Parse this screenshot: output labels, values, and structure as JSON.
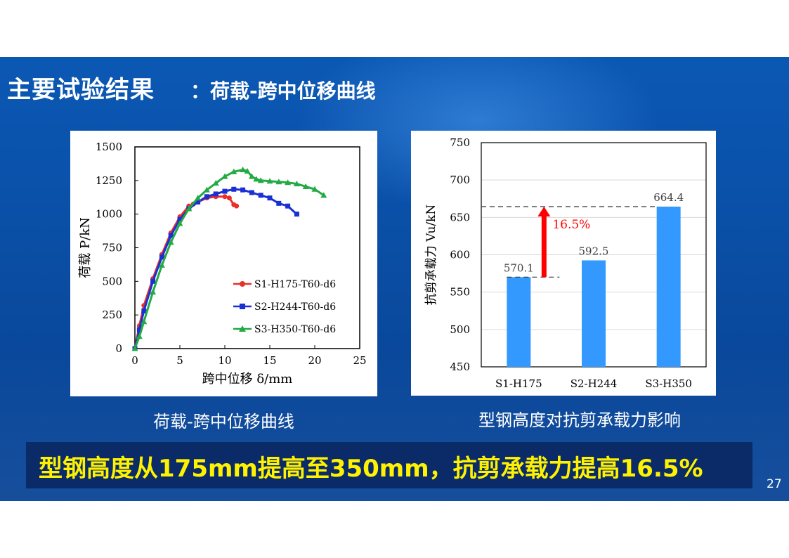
{
  "slide": {
    "title_main": "主要试验结果",
    "title_sub": "：荷载-跨中位移曲线",
    "caption_left": "荷载-跨中位移曲线",
    "caption_right": "型钢高度对抗剪承载力影响",
    "conclusion": "型钢高度从175mm提高至350mm，抗剪承载力提高16.5%",
    "page_number": "27",
    "colors": {
      "background": "#0b56b0",
      "conclusion_bg": "#0a2a68",
      "conclusion_text": "#fff200"
    }
  },
  "chart_data": [
    {
      "type": "line",
      "xlabel": "跨中位移 δ/mm",
      "ylabel": "荷载 P/kN",
      "xlim": [
        0,
        25
      ],
      "ylim": [
        0,
        1500
      ],
      "xticks": [
        "0",
        "5",
        "10",
        "15",
        "20",
        "25"
      ],
      "yticks": [
        "0",
        "250",
        "500",
        "750",
        "1000",
        "1250",
        "1500"
      ],
      "legend_position": "bottom-right",
      "series": [
        {
          "name": "S1-H175-T60-d6",
          "color": "#e8302a",
          "marker": "circle",
          "x": [
            0,
            0.5,
            1,
            2,
            3,
            4,
            5,
            6,
            6.5,
            7,
            8,
            9,
            10,
            10.5,
            11,
            11.3
          ],
          "y": [
            0,
            170,
            320,
            520,
            700,
            860,
            980,
            1060,
            1075,
            1090,
            1120,
            1130,
            1130,
            1120,
            1070,
            1060
          ]
        },
        {
          "name": "S2-H244-T60-d6",
          "color": "#1a2fd4",
          "marker": "square",
          "x": [
            0,
            0.5,
            1,
            2,
            3,
            4,
            5,
            6,
            7,
            8,
            9,
            10,
            11,
            12,
            13,
            14,
            15,
            16,
            17,
            18
          ],
          "y": [
            0,
            140,
            280,
            500,
            680,
            840,
            960,
            1040,
            1090,
            1130,
            1150,
            1170,
            1185,
            1180,
            1160,
            1140,
            1120,
            1080,
            1060,
            1000
          ]
        },
        {
          "name": "S3-H350-T60-d6",
          "color": "#22aa44",
          "marker": "triangle",
          "x": [
            0,
            0.5,
            1,
            2,
            3,
            4,
            5,
            6,
            7,
            8,
            9,
            10,
            11,
            12,
            12.5,
            13,
            13.5,
            14,
            15,
            16,
            17,
            18,
            19,
            20,
            21
          ],
          "y": [
            0,
            90,
            200,
            420,
            620,
            790,
            930,
            1040,
            1120,
            1180,
            1230,
            1280,
            1315,
            1330,
            1320,
            1280,
            1260,
            1250,
            1245,
            1240,
            1235,
            1225,
            1205,
            1185,
            1140
          ]
        }
      ]
    },
    {
      "type": "bar",
      "categories": [
        "S1-H175",
        "S2-H244",
        "S3-H350"
      ],
      "values": [
        570.1,
        592.5,
        664.4
      ],
      "value_labels": [
        "570.1",
        "592.5",
        "664.4"
      ],
      "ylabel": "抗剪承载力 Vu/kN",
      "ylim": [
        450,
        750
      ],
      "yticks": [
        "450",
        "500",
        "550",
        "600",
        "650",
        "700",
        "750"
      ],
      "bar_color": "#3399ff",
      "annotation": {
        "text": "16.5%",
        "from_value": 570.1,
        "to_value": 664.4,
        "color": "#ff0000"
      }
    }
  ]
}
